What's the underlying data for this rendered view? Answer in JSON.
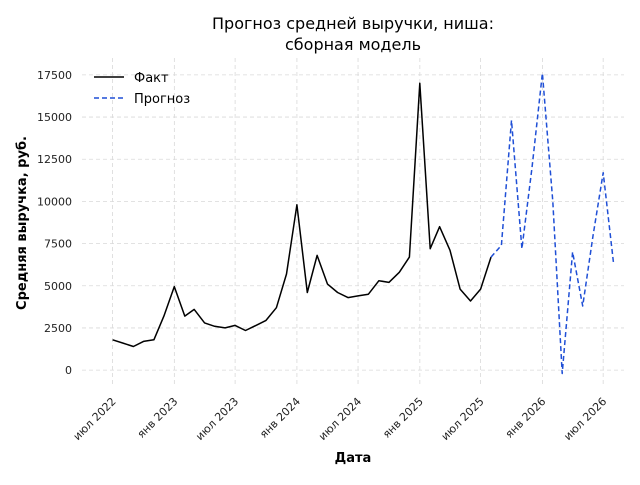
{
  "chart_data": {
    "type": "line",
    "title_line1": "Прогноз средней выручки, ниша:",
    "title_line2": "сборная модель",
    "xlabel": "Дата",
    "ylabel": "Средняя выручка, руб.",
    "grid": true,
    "legend_position": "top-left",
    "ylim": [
      -1000,
      18500
    ],
    "xlim": [
      "2022-04-01",
      "2026-09-01"
    ],
    "y_ticks": [
      0,
      2500,
      5000,
      7500,
      10000,
      12500,
      15000,
      17500
    ],
    "y_tick_labels": [
      "0",
      "2500",
      "5000",
      "7500",
      "10000",
      "12500",
      "15000",
      "17500"
    ],
    "x_ticks": [
      "2022-07-01",
      "2023-01-01",
      "2023-07-01",
      "2024-01-01",
      "2024-07-01",
      "2025-01-01",
      "2025-07-01",
      "2026-01-01",
      "2026-07-01"
    ],
    "x_tick_labels": [
      "июл 2022",
      "янв 2023",
      "июл 2023",
      "янв 2024",
      "июл 2024",
      "янв 2025",
      "июл 2025",
      "янв 2026",
      "июл 2026"
    ],
    "series": [
      {
        "name": "Факт",
        "color": "#000000",
        "style": "solid",
        "x": [
          "2022-07-01",
          "2022-08-01",
          "2022-09-01",
          "2022-10-01",
          "2022-11-01",
          "2022-12-01",
          "2023-01-01",
          "2023-02-01",
          "2023-03-01",
          "2023-04-01",
          "2023-05-01",
          "2023-06-01",
          "2023-07-01",
          "2023-08-01",
          "2023-09-01",
          "2023-10-01",
          "2023-11-01",
          "2023-12-01",
          "2024-01-01",
          "2024-02-01",
          "2024-03-01",
          "2024-04-01",
          "2024-05-01",
          "2024-06-01",
          "2024-07-01",
          "2024-08-01",
          "2024-09-01",
          "2024-10-01",
          "2024-11-01",
          "2024-12-01",
          "2025-01-01",
          "2025-02-01",
          "2025-03-01",
          "2025-04-01",
          "2025-05-01",
          "2025-06-01",
          "2025-07-01",
          "2025-08-01"
        ],
        "y": [
          1800,
          1600,
          1400,
          1700,
          1800,
          3200,
          4950,
          3200,
          3600,
          2800,
          2600,
          2500,
          2650,
          2350,
          2650,
          2950,
          3700,
          5700,
          9800,
          4600,
          6800,
          5100,
          4600,
          4300,
          4400,
          4500,
          5300,
          5200,
          5800,
          6700,
          17000,
          7200,
          8500,
          7100,
          4800,
          4100,
          4800,
          6700
        ]
      },
      {
        "name": "Прогноз",
        "color": "#1f4fd6",
        "style": "dashed",
        "x": [
          "2025-08-01",
          "2025-09-01",
          "2025-10-01",
          "2025-11-01",
          "2025-12-01",
          "2026-01-01",
          "2026-02-01",
          "2026-03-01",
          "2026-04-01",
          "2026-05-01",
          "2026-06-01",
          "2026-07-01",
          "2026-08-01"
        ],
        "y": [
          6700,
          7400,
          14800,
          7200,
          12000,
          17600,
          10000,
          -200,
          7000,
          3800,
          8000,
          11700,
          6300
        ]
      }
    ]
  }
}
